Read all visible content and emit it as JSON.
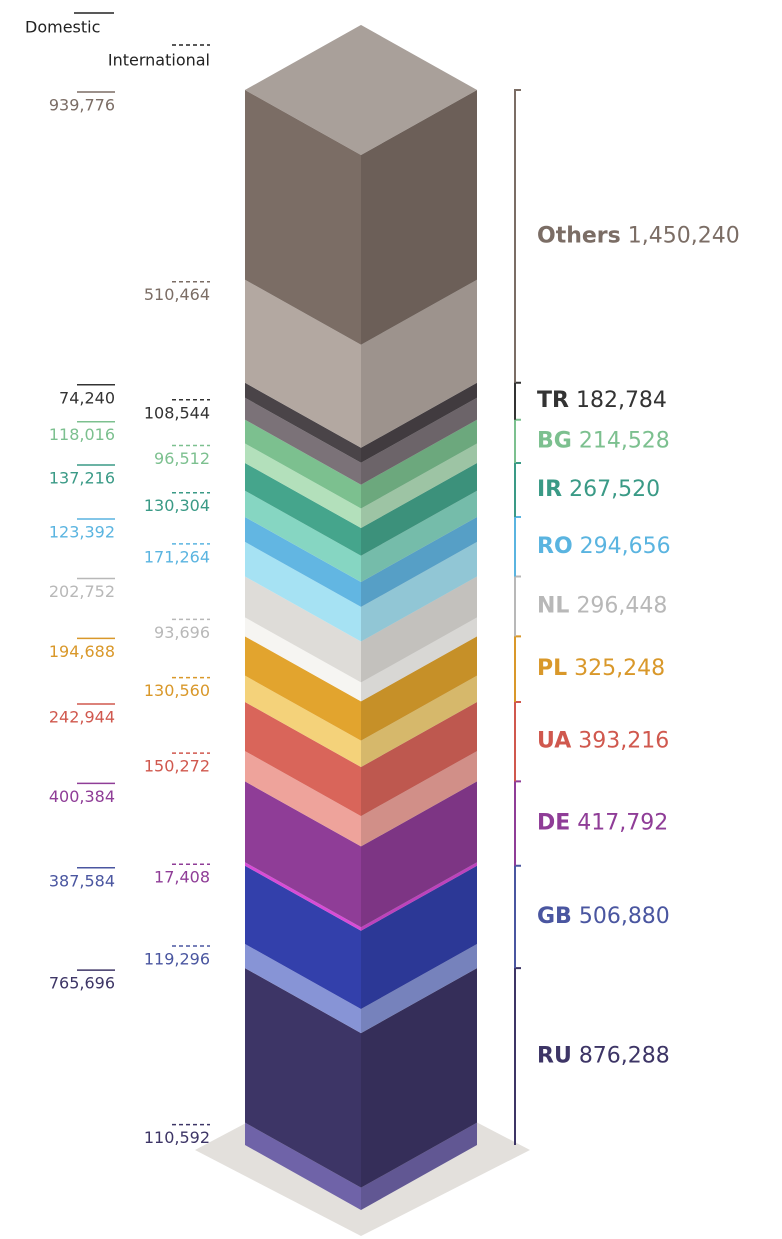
{
  "chart_data": {
    "type": "isometric-stacked-column",
    "categories": [
      "RU",
      "GB",
      "DE",
      "UA",
      "PL",
      "NL",
      "RO",
      "IR",
      "BG",
      "TR",
      "Others"
    ],
    "series": [
      {
        "name": "International",
        "values": [
          110592,
          119296,
          17408,
          150272,
          130560,
          93696,
          171264,
          130304,
          96512,
          108544,
          510464
        ],
        "value_labels": [
          "110,592",
          "119,296",
          "17,408",
          "150,272",
          "130,560",
          "93,696",
          "171,264",
          "130,304",
          "96,512",
          "108,544",
          "510,464"
        ],
        "colors": [
          "#6f63a8",
          "#8794d6",
          "#d84cd6",
          "#eea39b",
          "#f4d27a",
          "#f6f5f2",
          "#a6e2f3",
          "#86d6c2",
          "#b3e0bb",
          "#7b7278",
          "#b3a8a1"
        ]
      },
      {
        "name": "Domestic",
        "values": [
          765696,
          387584,
          400384,
          242944,
          194688,
          202752,
          123392,
          137216,
          118016,
          74240,
          939776
        ],
        "value_labels": [
          "765,696",
          "387,584",
          "400,384",
          "242,944",
          "194,688",
          "202,752",
          "123,392",
          "137,216",
          "118,016",
          "74,240",
          "939,776"
        ],
        "colors": [
          "#3d3566",
          "#3340ab",
          "#8f3d97",
          "#d9655a",
          "#e2a42e",
          "#dedcd8",
          "#62b6e2",
          "#45a58c",
          "#7cc08f",
          "#4a4448",
          "#7b6d65"
        ]
      }
    ],
    "totals": [
      876288,
      506880,
      417792,
      393216,
      325248,
      296448,
      294656,
      267520,
      214528,
      182784,
      1450240
    ],
    "total_labels": [
      "876,288",
      "506,880",
      "417,792",
      "393,216",
      "325,248",
      "296,448",
      "294,656",
      "267,520",
      "214,528",
      "182,784",
      "1,450,240"
    ],
    "label_colors": [
      "#3d3566",
      "#4a56a0",
      "#8f3d97",
      "#d0584e",
      "#d9982a",
      "#b8b8b8",
      "#5ab4e0",
      "#3a9a86",
      "#7cc08f",
      "#333333",
      "#7b6d65"
    ]
  }
}
